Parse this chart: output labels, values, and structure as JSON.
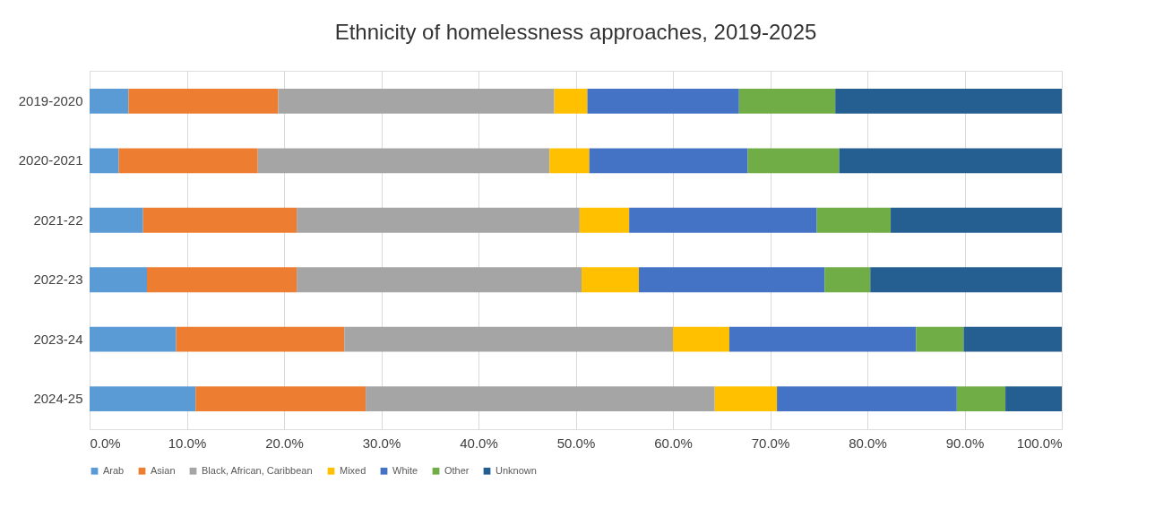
{
  "chart_data": {
    "type": "bar",
    "orientation": "horizontal",
    "stacked": true,
    "title": "Ethnicity of homelessness approaches, 2019-2025",
    "categories": [
      "2019-2020",
      "2020-2021",
      "2021-22",
      "2022-23",
      "2023-24",
      "2024-25"
    ],
    "series": [
      {
        "name": "Arab",
        "color": "#5b9bd5",
        "values": [
          4.0,
          3.0,
          5.5,
          5.9,
          8.9,
          10.9
        ]
      },
      {
        "name": "Asian",
        "color": "#ed7d31",
        "values": [
          15.4,
          14.3,
          15.8,
          15.4,
          17.3,
          17.5
        ]
      },
      {
        "name": "Black, African, Caribbean",
        "color": "#a5a5a5",
        "values": [
          28.4,
          30.0,
          29.1,
          29.3,
          33.8,
          35.9
        ]
      },
      {
        "name": "Mixed",
        "color": "#ffc000",
        "values": [
          3.4,
          4.1,
          5.1,
          5.9,
          5.8,
          6.4
        ]
      },
      {
        "name": "White",
        "color": "#4472c4",
        "values": [
          15.6,
          16.3,
          19.3,
          19.1,
          19.2,
          18.5
        ]
      },
      {
        "name": "Other",
        "color": "#70ad47",
        "values": [
          9.9,
          9.4,
          7.6,
          4.7,
          4.9,
          5.0
        ]
      },
      {
        "name": "Unknown",
        "color": "#255e91",
        "values": [
          23.3,
          22.9,
          17.6,
          19.7,
          10.1,
          5.8
        ]
      }
    ],
    "xlim": [
      0,
      100
    ],
    "xticks": [
      {
        "value": 0,
        "label": "0.0%"
      },
      {
        "value": 10,
        "label": "10.0%"
      },
      {
        "value": 20,
        "label": "20.0%"
      },
      {
        "value": 30,
        "label": "30.0%"
      },
      {
        "value": 40,
        "label": "40.0%"
      },
      {
        "value": 50,
        "label": "50.0%"
      },
      {
        "value": 60,
        "label": "60.0%"
      },
      {
        "value": 70,
        "label": "70.0%"
      },
      {
        "value": 80,
        "label": "80.0%"
      },
      {
        "value": 90,
        "label": "90.0%"
      },
      {
        "value": 100,
        "label": "100.0%"
      }
    ],
    "grid": "x",
    "legend": "bottom"
  }
}
